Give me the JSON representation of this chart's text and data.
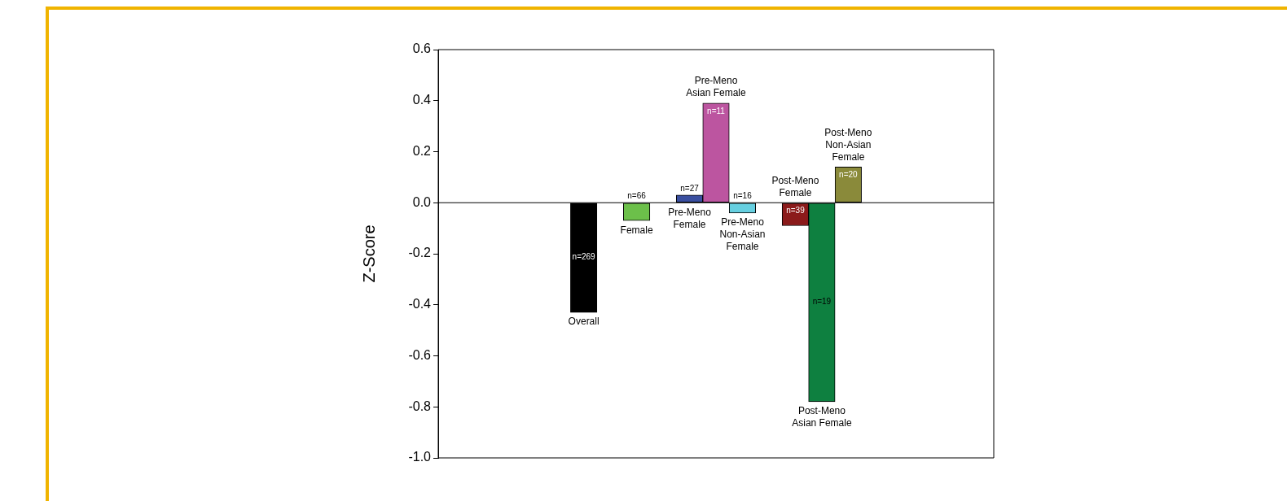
{
  "chart_data": {
    "type": "bar",
    "ylabel": "Z-Score",
    "categories": [
      null,
      null,
      null,
      null,
      null,
      "Overall",
      null,
      "Female",
      null,
      "Pre-Meno Female",
      "Pre-Meno Asian Female",
      "Pre-Meno Non-Asian Female",
      null,
      "Post-Meno Female",
      "Post-Meno Asian Female",
      "Post-Meno Non-Asian Female",
      null,
      null,
      null,
      null,
      null
    ],
    "values": [
      null,
      null,
      null,
      null,
      null,
      -0.43,
      null,
      -0.07,
      null,
      0.03,
      0.39,
      -0.04,
      null,
      -0.09,
      -0.78,
      0.14,
      null,
      null,
      null,
      null,
      null
    ],
    "colors": [
      "#000000",
      "#000000",
      "#000000",
      "#000000",
      "#000000",
      "#000000",
      "#000000",
      "#6cc04a",
      "#000000",
      "#3a4fa0",
      "#bc55a0",
      "#66cfe0",
      "#000000",
      "#8b1a1a",
      "#0e8040",
      "#8a8a3a",
      "#000000",
      "#000000",
      "#000000",
      "#000000",
      "#000000"
    ],
    "ylim": [
      -1.0,
      0.6
    ],
    "yticks": [
      {
        "value": -1.0,
        "label": "-1.0"
      },
      {
        "value": -0.8,
        "label": "-0.8"
      },
      {
        "value": -0.6,
        "label": "-0.6"
      },
      {
        "value": -0.4,
        "label": "-0.4"
      },
      {
        "value": -0.2,
        "label": "-0.2"
      },
      {
        "value": 0,
        "label": "0.0"
      },
      {
        "value": 0.2,
        "label": "0.2"
      },
      {
        "value": 0.4,
        "label": "0.4"
      },
      {
        "value": 0.6,
        "label": "0.6"
      }
    ],
    "annotations": [
      "n=269",
      "n=66",
      "n=27",
      "n=11",
      "n=16",
      "n=39",
      "n=19",
      "n=20"
    ]
  }
}
